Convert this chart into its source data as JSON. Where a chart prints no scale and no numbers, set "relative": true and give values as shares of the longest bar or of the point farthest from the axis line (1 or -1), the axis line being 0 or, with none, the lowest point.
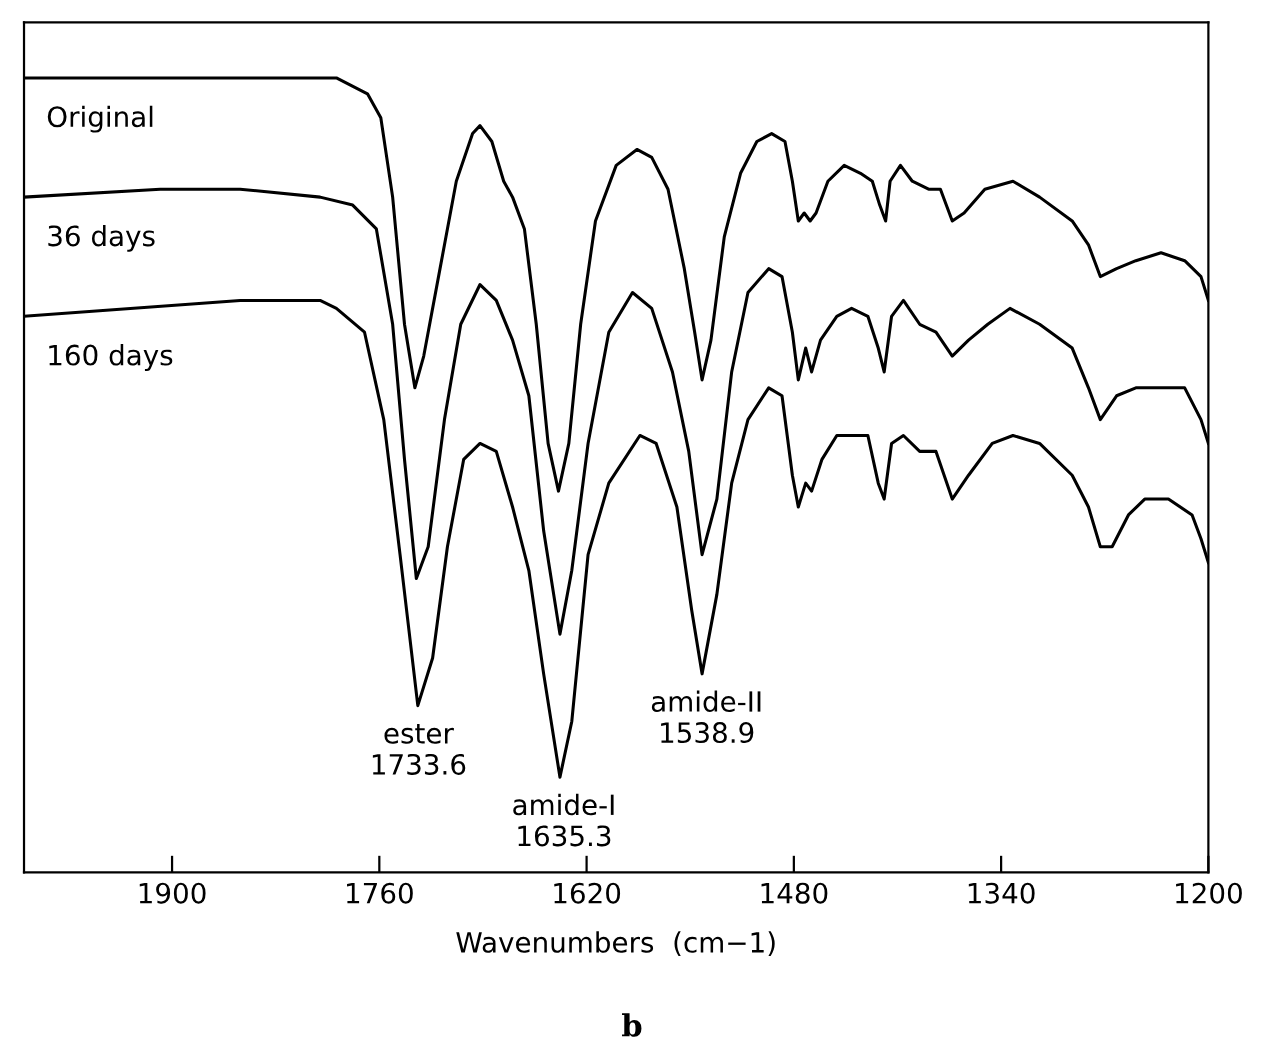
{
  "chart_data": {
    "type": "line",
    "relative": true,
    "xlabel": "Wavenumbers  (cm−1)",
    "xlim": [
      2000,
      1200
    ],
    "xticks": [
      1900,
      1760,
      1620,
      1480,
      1340,
      1200
    ],
    "tick_labels": "x",
    "grid": false,
    "marker": "none",
    "line_style": "solid",
    "series": [
      {
        "name": "Original",
        "color": "#000000",
        "x": [
          2000,
          1908,
          1854,
          1789,
          1768,
          1759,
          1751,
          1743,
          1736,
          1730,
          1719,
          1708,
          1697,
          1692,
          1684,
          1676,
          1670,
          1662,
          1654,
          1646,
          1639,
          1632,
          1624,
          1614,
          1600,
          1586,
          1576,
          1565,
          1554,
          1547,
          1542,
          1536,
          1527,
          1516,
          1505,
          1495,
          1486,
          1481,
          1477,
          1473,
          1469,
          1465,
          1457,
          1446,
          1435,
          1427,
          1422,
          1418,
          1415,
          1408,
          1400,
          1389,
          1381,
          1373,
          1365,
          1351,
          1332,
          1314,
          1292,
          1281,
          1273,
          1262,
          1249,
          1232,
          1216,
          1205,
          1200
        ],
        "values": [
          1.0,
          1.0,
          1.0,
          1.0,
          0.98,
          0.95,
          0.85,
          0.69,
          0.61,
          0.65,
          0.76,
          0.87,
          0.93,
          0.94,
          0.92,
          0.87,
          0.85,
          0.81,
          0.69,
          0.54,
          0.48,
          0.54,
          0.69,
          0.82,
          0.89,
          0.91,
          0.9,
          0.86,
          0.76,
          0.68,
          0.62,
          0.67,
          0.8,
          0.88,
          0.92,
          0.93,
          0.92,
          0.87,
          0.82,
          0.83,
          0.82,
          0.83,
          0.87,
          0.89,
          0.88,
          0.87,
          0.84,
          0.82,
          0.87,
          0.89,
          0.87,
          0.86,
          0.86,
          0.82,
          0.83,
          0.86,
          0.87,
          0.85,
          0.82,
          0.79,
          0.75,
          0.76,
          0.77,
          0.78,
          0.77,
          0.75,
          0.72
        ]
      },
      {
        "name": "36 days",
        "color": "#000000",
        "x": [
          2000,
          1908,
          1854,
          1800,
          1778,
          1762,
          1751,
          1743,
          1735,
          1727,
          1716,
          1705,
          1692,
          1681,
          1670,
          1659,
          1649,
          1638,
          1630,
          1619,
          1605,
          1589,
          1576,
          1562,
          1551,
          1542,
          1532,
          1522,
          1511,
          1497,
          1488,
          1481,
          1477,
          1472,
          1468,
          1462,
          1451,
          1441,
          1430,
          1423,
          1419,
          1414,
          1406,
          1395,
          1384,
          1373,
          1362,
          1349,
          1334,
          1314,
          1292,
          1281,
          1273,
          1262,
          1249,
          1232,
          1216,
          1205,
          1200
        ],
        "values": [
          0.85,
          0.86,
          0.86,
          0.85,
          0.84,
          0.81,
          0.69,
          0.52,
          0.37,
          0.41,
          0.57,
          0.69,
          0.74,
          0.72,
          0.67,
          0.6,
          0.43,
          0.3,
          0.38,
          0.54,
          0.68,
          0.73,
          0.71,
          0.63,
          0.53,
          0.4,
          0.47,
          0.63,
          0.73,
          0.76,
          0.75,
          0.68,
          0.62,
          0.66,
          0.63,
          0.67,
          0.7,
          0.71,
          0.7,
          0.66,
          0.63,
          0.7,
          0.72,
          0.69,
          0.68,
          0.65,
          0.67,
          0.69,
          0.71,
          0.69,
          0.66,
          0.61,
          0.57,
          0.6,
          0.61,
          0.61,
          0.61,
          0.57,
          0.54
        ]
      },
      {
        "name": "160 days",
        "color": "#000000",
        "x": [
          2000,
          1854,
          1800,
          1789,
          1770,
          1757,
          1746,
          1734,
          1724,
          1714,
          1703,
          1692,
          1681,
          1670,
          1659,
          1649,
          1638,
          1630,
          1619,
          1605,
          1584,
          1573,
          1559,
          1549,
          1542,
          1532,
          1522,
          1511,
          1497,
          1488,
          1481,
          1477,
          1472,
          1468,
          1461,
          1451,
          1441,
          1430,
          1423,
          1419,
          1414,
          1406,
          1395,
          1384,
          1373,
          1362,
          1346,
          1332,
          1314,
          1292,
          1281,
          1273,
          1265,
          1254,
          1243,
          1227,
          1211,
          1205,
          1200
        ],
        "values": [
          0.7,
          0.72,
          0.72,
          0.71,
          0.68,
          0.57,
          0.4,
          0.21,
          0.27,
          0.41,
          0.52,
          0.54,
          0.53,
          0.46,
          0.38,
          0.25,
          0.12,
          0.19,
          0.4,
          0.49,
          0.55,
          0.54,
          0.46,
          0.33,
          0.25,
          0.35,
          0.49,
          0.57,
          0.61,
          0.6,
          0.5,
          0.46,
          0.49,
          0.48,
          0.52,
          0.55,
          0.55,
          0.55,
          0.49,
          0.47,
          0.54,
          0.55,
          0.53,
          0.53,
          0.47,
          0.5,
          0.54,
          0.55,
          0.54,
          0.5,
          0.46,
          0.41,
          0.41,
          0.45,
          0.47,
          0.47,
          0.45,
          0.42,
          0.39
        ]
      }
    ],
    "annotations": [
      {
        "text": "ester\n1733.6",
        "x": 1733.6,
        "y": 0.21
      },
      {
        "text": "amide-I\n1635.3",
        "x": 1635.3,
        "y": 0.12
      },
      {
        "text": "amide-II\n1538.9",
        "x": 1538.9,
        "y": 0.25
      },
      "b"
    ]
  }
}
